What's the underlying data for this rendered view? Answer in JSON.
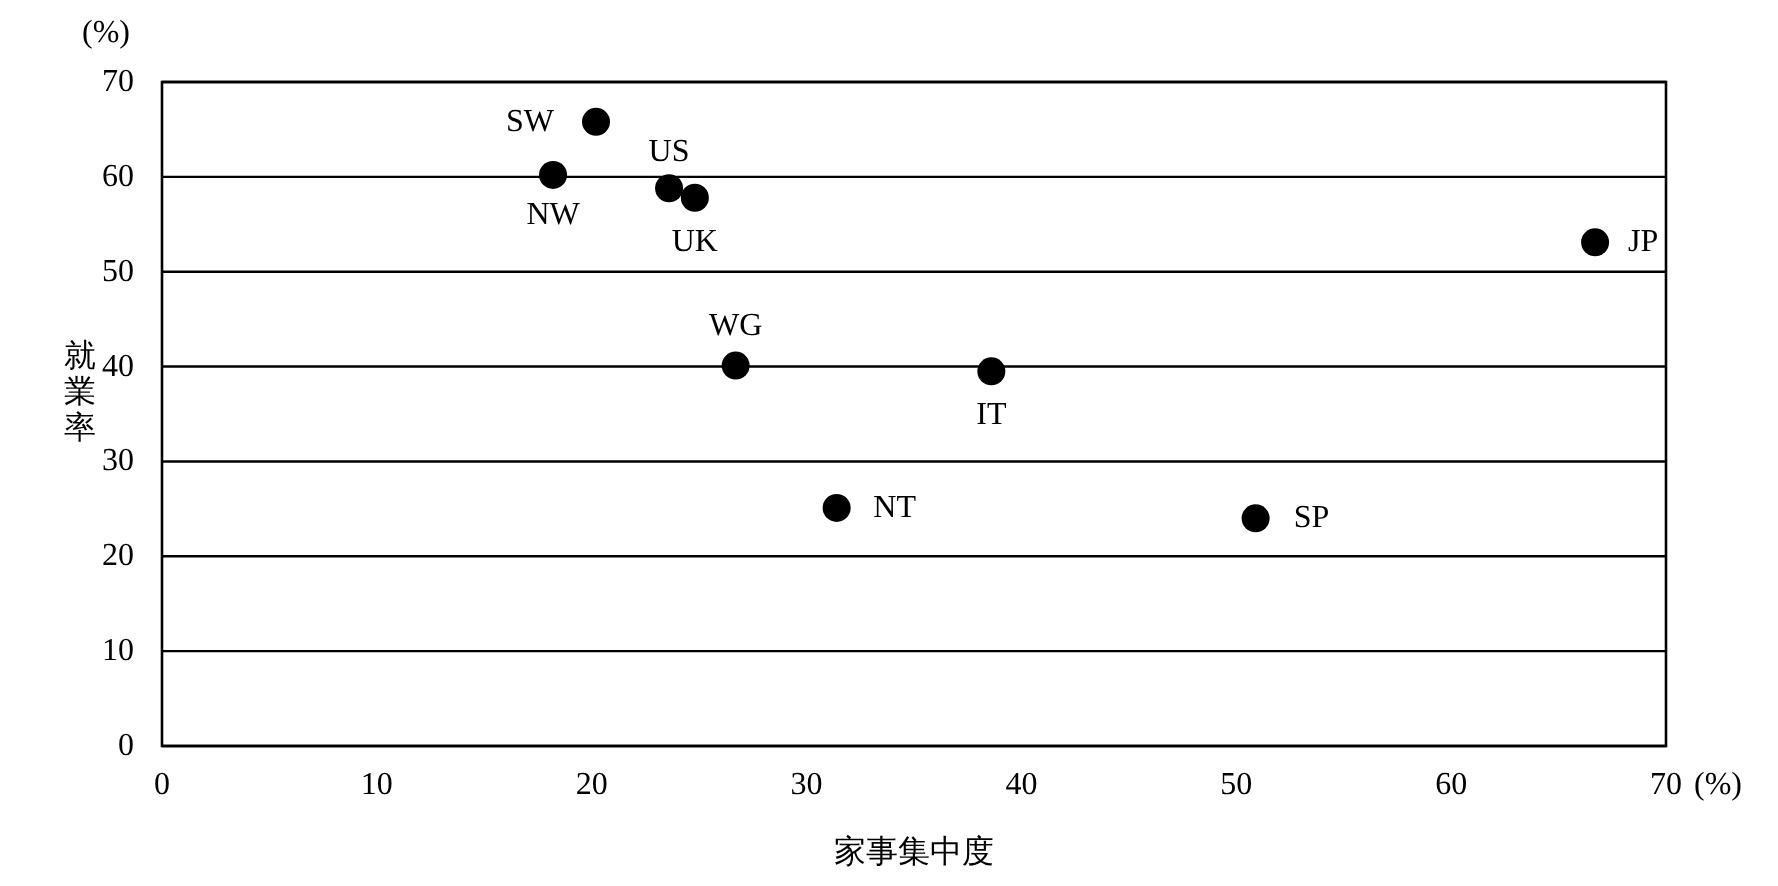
{
  "chart_data": {
    "type": "scatter",
    "xlabel": "家事集中度",
    "ylabel": "就業率",
    "xlim": [
      0,
      70
    ],
    "xticks": [
      0,
      10,
      20,
      30,
      40,
      50,
      60,
      70
    ],
    "ylim": [
      0,
      70
    ],
    "yticks": [
      0,
      10,
      20,
      30,
      40,
      50,
      60,
      70
    ],
    "grid": "y",
    "marker": "circle",
    "series": [
      {
        "color": "#000000",
        "x": [
          20.2,
          18.2,
          23.6,
          24.8,
          26.7,
          38.6,
          31.4,
          50.9,
          66.7
        ],
        "values": [
          65.8,
          60.2,
          58.8,
          57.8,
          40.1,
          39.5,
          25.1,
          24.0,
          53.1
        ]
      }
    ],
    "annotations": [
      "(%)",
      "(%)",
      {
        "text": "SW",
        "x": 20.2,
        "y": 65.8
      },
      {
        "text": "NW",
        "x": 18.2,
        "y": 60.2
      },
      {
        "text": "US",
        "x": 23.6,
        "y": 58.8
      },
      {
        "text": "UK",
        "x": 24.8,
        "y": 57.8
      },
      {
        "text": "WG",
        "x": 26.7,
        "y": 40.1
      },
      {
        "text": "IT",
        "x": 38.6,
        "y": 39.5
      },
      {
        "text": "NT",
        "x": 31.4,
        "y": 25.1
      },
      {
        "text": "SP",
        "x": 50.9,
        "y": 24.0
      },
      {
        "text": "JP",
        "x": 66.7,
        "y": 53.1
      }
    ]
  }
}
